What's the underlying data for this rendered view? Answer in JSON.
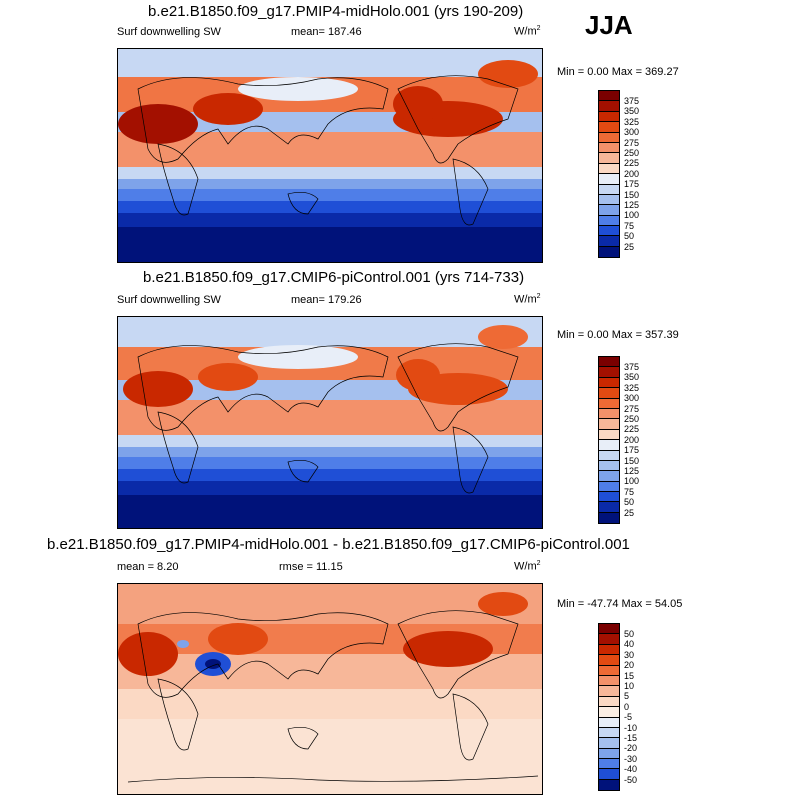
{
  "season": "JJA",
  "panels": [
    {
      "title": "b.e21.B1850.f09_g17.PMIP4-midHolo.001 (yrs 190-209)",
      "left_label": "Surf downwelling SW",
      "center_label": "mean= 187.46",
      "units": "W/m",
      "units_sup": "2",
      "minmax": "Min =   0.00 Max = 369.27",
      "levels": [
        "375",
        "350",
        "325",
        "300",
        "275",
        "250",
        "225",
        "200",
        "175",
        "150",
        "125",
        "100",
        "75",
        "50",
        "25"
      ]
    },
    {
      "title": "b.e21.B1850.f09_g17.CMIP6-piControl.001 (yrs 714-733)",
      "left_label": "Surf downwelling SW",
      "center_label": "mean= 179.26",
      "units": "W/m",
      "units_sup": "2",
      "minmax": "Min =   0.00 Max = 357.39",
      "levels": [
        "375",
        "350",
        "325",
        "300",
        "275",
        "250",
        "225",
        "200",
        "175",
        "150",
        "125",
        "100",
        "75",
        "50",
        "25"
      ]
    },
    {
      "title": "b.e21.B1850.f09_g17.PMIP4-midHolo.001 - b.e21.B1850.f09_g17.CMIP6-piControl.001",
      "left_label": "mean =   8.20",
      "center_label": "rmse =  11.15",
      "units": "W/m",
      "units_sup": "2",
      "minmax": "Min = -47.74 Max =  54.05",
      "levels": [
        "50",
        "40",
        "30",
        "20",
        "15",
        "10",
        "5",
        "0",
        "-5",
        "-10",
        "-15",
        "-20",
        "-30",
        "-40",
        "-50"
      ]
    }
  ],
  "colors": {
    "abs_scale": [
      "#7a0000",
      "#a31000",
      "#c92800",
      "#e24a12",
      "#ee6a35",
      "#f3916a",
      "#f7b799",
      "#fbd9c4",
      "#e8eef8",
      "#c7d8f3",
      "#a5c0ee",
      "#7ea3ea",
      "#4f7ee8",
      "#1f4fd6",
      "#0a2aa8",
      "#00127a"
    ],
    "diff_scale": [
      "#7a0000",
      "#a31000",
      "#c92800",
      "#e24a12",
      "#ee6a35",
      "#f3916a",
      "#f7b799",
      "#fbd9c4",
      "#fbeee4",
      "#e8eef8",
      "#c7d8f3",
      "#a5c0ee",
      "#7ea3ea",
      "#4f7ee8",
      "#1f4fd6",
      "#00127a"
    ]
  }
}
